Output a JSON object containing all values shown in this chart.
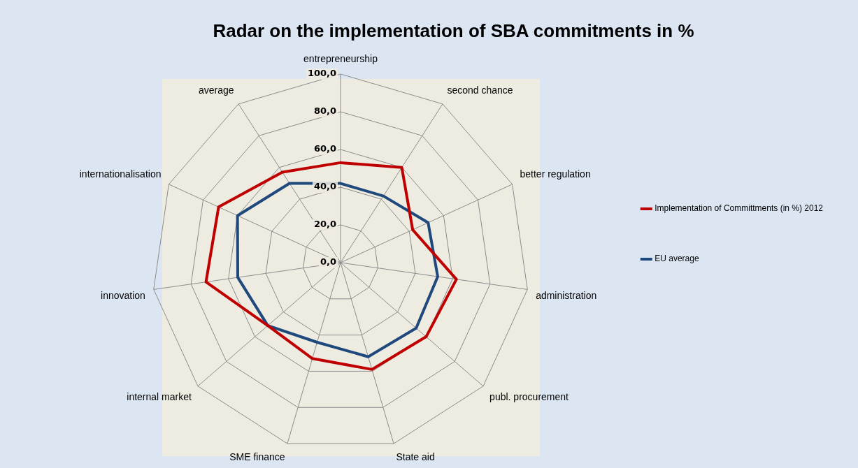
{
  "chart_data": {
    "type": "radar",
    "title": "Radar on the implementation of SBA commitments in %",
    "categories": [
      "entrepreneurship",
      "second chance",
      "better regulation",
      "administration",
      "publ. procurement",
      "State aid",
      "SME finance",
      "internal market",
      "innovation",
      "internationalisation",
      "average"
    ],
    "series": [
      {
        "name": "Implementation of Committments (in %) 2012",
        "color": "#c00000",
        "values": [
          53,
          60,
          42,
          62,
          60,
          59,
          53,
          51,
          72,
          71,
          57
        ]
      },
      {
        "name": "EU average",
        "color": "#1f497d",
        "values": [
          42,
          42,
          51,
          52,
          53,
          52,
          44,
          51,
          55,
          60,
          50
        ]
      }
    ],
    "ylim": [
      0,
      100
    ],
    "yticks": [
      {
        "value": 0,
        "label": "0,0"
      },
      {
        "value": 20,
        "label": "20,0"
      },
      {
        "value": 40,
        "label": "40,0"
      },
      {
        "value": 60,
        "label": "60,0"
      },
      {
        "value": 80,
        "label": "80,0"
      },
      {
        "value": 100,
        "label": "100,0"
      }
    ],
    "grid": true,
    "legend": "right",
    "marker": "none",
    "line_style": "solid"
  }
}
